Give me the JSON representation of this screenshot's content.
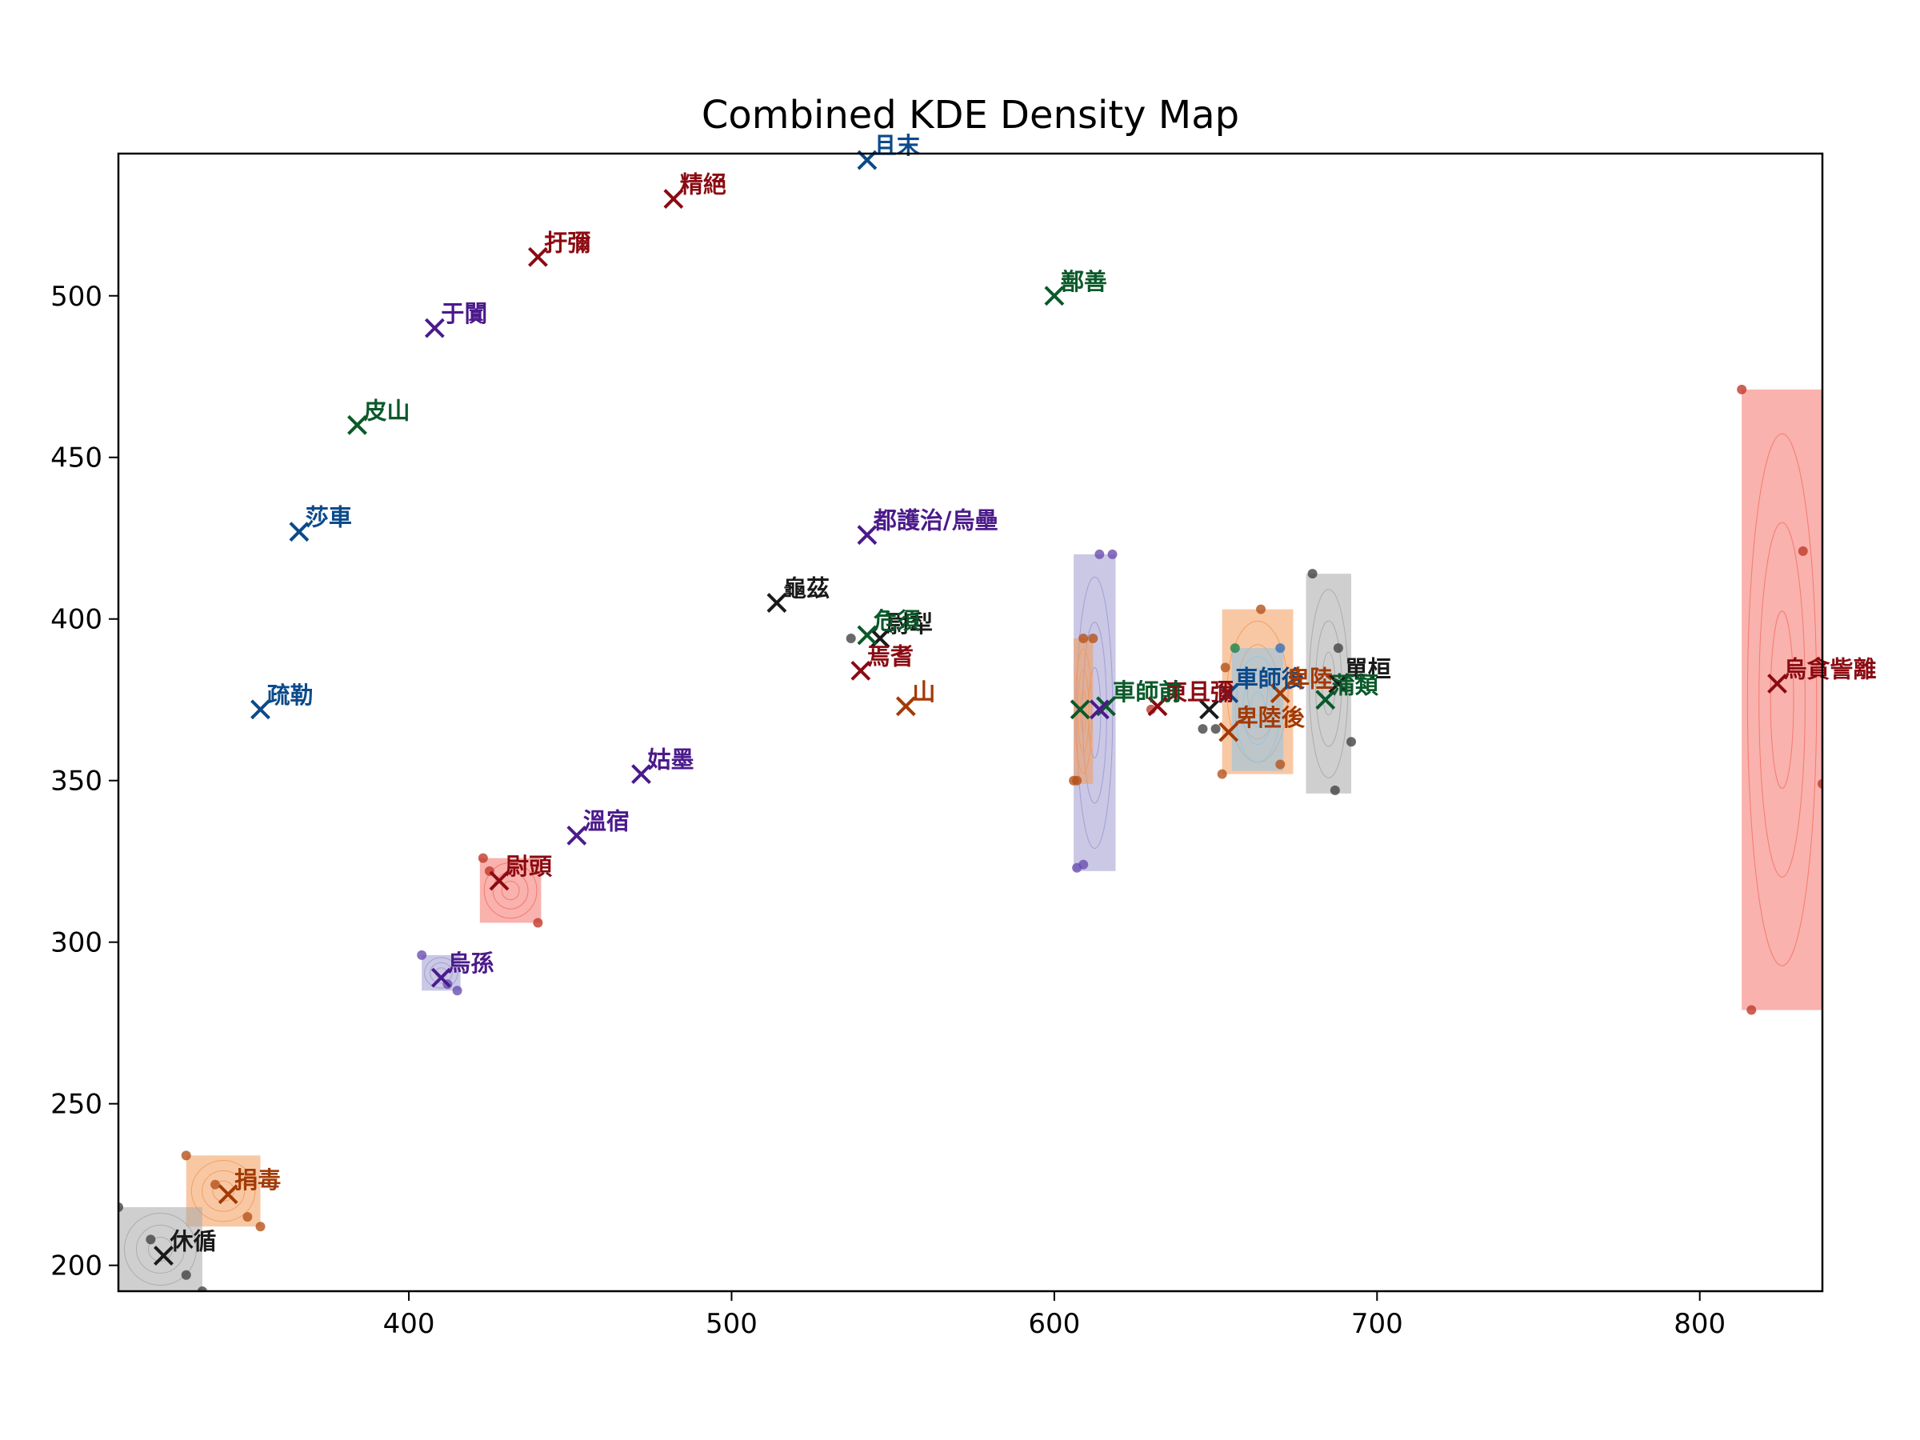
{
  "chart_data": {
    "type": "scatter",
    "title": "Combined KDE Density Map",
    "xlabel": "",
    "ylabel": "",
    "xlim": [
      310,
      838
    ],
    "ylim": [
      192,
      544
    ],
    "x_ticks": [
      400,
      500,
      600,
      700,
      800
    ],
    "y_ticks": [
      200,
      250,
      300,
      350,
      400,
      450,
      500
    ],
    "grid": false,
    "colors": {
      "red": "#8b0a12",
      "blue": "#0b4a8b",
      "purple": "#4b1a8b",
      "green": "#0a5a2a",
      "orange": "#a33a05",
      "black": "#1a1a1a"
    },
    "density_regions": [
      {
        "x": [
          813,
          838
        ],
        "y": [
          279,
          471
        ],
        "color": "#f4736a"
      },
      {
        "x": [
          606,
          619
        ],
        "y": [
          322,
          420
        ],
        "color": "#9e9ad0"
      },
      {
        "x": [
          606,
          612
        ],
        "y": [
          349,
          394
        ],
        "color": "#f39a5a"
      },
      {
        "x": [
          678,
          692
        ],
        "y": [
          346,
          414
        ],
        "color": "#a8a8a8"
      },
      {
        "x": [
          652,
          674
        ],
        "y": [
          352,
          403
        ],
        "color": "#f39a5a"
      },
      {
        "x": [
          655,
          671
        ],
        "y": [
          353,
          391
        ],
        "color": "#8ec5e8"
      },
      {
        "x": [
          422,
          441
        ],
        "y": [
          306,
          326
        ],
        "color": "#f4736a"
      },
      {
        "x": [
          404,
          416
        ],
        "y": [
          285,
          296
        ],
        "color": "#9e9ad0"
      },
      {
        "x": [
          331,
          354
        ],
        "y": [
          212,
          234
        ],
        "color": "#f39a5a"
      },
      {
        "x": [
          310,
          336
        ],
        "y": [
          192,
          218
        ],
        "color": "#a8a8a8"
      }
    ],
    "points": [
      {
        "label": "且末",
        "x": 542,
        "y": 542,
        "color": "blue"
      },
      {
        "label": "精絕",
        "x": 482,
        "y": 530,
        "color": "red"
      },
      {
        "label": "扜彌",
        "x": 440,
        "y": 512,
        "color": "red"
      },
      {
        "label": "鄯善",
        "x": 600,
        "y": 500,
        "color": "green"
      },
      {
        "label": "于闐",
        "x": 408,
        "y": 490,
        "color": "purple"
      },
      {
        "label": "皮山",
        "x": 384,
        "y": 460,
        "color": "green"
      },
      {
        "label": "莎車",
        "x": 366,
        "y": 427,
        "color": "blue"
      },
      {
        "label": "都護治/烏壘",
        "x": 542,
        "y": 426,
        "color": "purple"
      },
      {
        "label": "龜茲",
        "x": 514,
        "y": 405,
        "color": "black"
      },
      {
        "label": "尉犁",
        "x": 546,
        "y": 394,
        "color": "black"
      },
      {
        "label": "危須",
        "x": 542,
        "y": 395,
        "color": "green"
      },
      {
        "label": "焉耆",
        "x": 540,
        "y": 384,
        "color": "red"
      },
      {
        "label": "山",
        "x": 554,
        "y": 373,
        "color": "orange"
      },
      {
        "label": "疏勒",
        "x": 354,
        "y": 372,
        "color": "blue"
      },
      {
        "label": "姑墨",
        "x": 472,
        "y": 352,
        "color": "purple"
      },
      {
        "label": "溫宿",
        "x": 452,
        "y": 333,
        "color": "purple"
      },
      {
        "label": "尉頭",
        "x": 428,
        "y": 319,
        "color": "red"
      },
      {
        "label": "烏孫",
        "x": 410,
        "y": 289,
        "color": "purple"
      },
      {
        "label": "捐毒",
        "x": 344,
        "y": 222,
        "color": "orange"
      },
      {
        "label": "休循",
        "x": 324,
        "y": 203,
        "color": "black"
      },
      {
        "label": "烏貪訾離",
        "x": 824,
        "y": 380,
        "color": "red"
      },
      {
        "label": "單桓",
        "x": 688,
        "y": 380,
        "color": "black"
      },
      {
        "label": "蒲類",
        "x": 684,
        "y": 375,
        "color": "green"
      },
      {
        "label": "車師後",
        "x": 654,
        "y": 377,
        "color": "blue"
      },
      {
        "label": "卑陸",
        "x": 670,
        "y": 377,
        "color": "orange"
      },
      {
        "label": "東且彌",
        "x": 632,
        "y": 373,
        "color": "red"
      },
      {
        "label": "車師前",
        "x": 616,
        "y": 373,
        "color": "green"
      },
      {
        "label": "卑陸後",
        "x": 654,
        "y": 365,
        "color": "orange"
      },
      {
        "label": "",
        "x": 648,
        "y": 372,
        "color": "black"
      },
      {
        "label": "",
        "x": 608,
        "y": 372,
        "color": "green"
      },
      {
        "label": "",
        "x": 614,
        "y": 372,
        "color": "purple"
      }
    ],
    "samples": [
      {
        "x": 813,
        "y": 471,
        "color": "#c0392b"
      },
      {
        "x": 832,
        "y": 421,
        "color": "#c0392b"
      },
      {
        "x": 838,
        "y": 349,
        "color": "#c0392b"
      },
      {
        "x": 816,
        "y": 279,
        "color": "#c0392b"
      },
      {
        "x": 614,
        "y": 420,
        "color": "#6a4fb0"
      },
      {
        "x": 618,
        "y": 420,
        "color": "#6a4fb0"
      },
      {
        "x": 607,
        "y": 323,
        "color": "#6a4fb0"
      },
      {
        "x": 609,
        "y": 324,
        "color": "#6a4fb0"
      },
      {
        "x": 609,
        "y": 394,
        "color": "#b5541c"
      },
      {
        "x": 612,
        "y": 394,
        "color": "#b5541c"
      },
      {
        "x": 606,
        "y": 350,
        "color": "#b5541c"
      },
      {
        "x": 607,
        "y": 350,
        "color": "#b5541c"
      },
      {
        "x": 680,
        "y": 414,
        "color": "#444"
      },
      {
        "x": 688,
        "y": 391,
        "color": "#444"
      },
      {
        "x": 692,
        "y": 362,
        "color": "#444"
      },
      {
        "x": 687,
        "y": 347,
        "color": "#444"
      },
      {
        "x": 664,
        "y": 403,
        "color": "#b5541c"
      },
      {
        "x": 670,
        "y": 355,
        "color": "#b5541c"
      },
      {
        "x": 652,
        "y": 352,
        "color": "#b5541c"
      },
      {
        "x": 653,
        "y": 385,
        "color": "#b5541c"
      },
      {
        "x": 656,
        "y": 391,
        "color": "#1e8449"
      },
      {
        "x": 670,
        "y": 391,
        "color": "#3b6fb5"
      },
      {
        "x": 650,
        "y": 366,
        "color": "#444"
      },
      {
        "x": 646,
        "y": 366,
        "color": "#444"
      },
      {
        "x": 537,
        "y": 394,
        "color": "#444"
      },
      {
        "x": 630,
        "y": 372,
        "color": "#c0392b"
      },
      {
        "x": 423,
        "y": 326,
        "color": "#c0392b"
      },
      {
        "x": 425,
        "y": 322,
        "color": "#c0392b"
      },
      {
        "x": 440,
        "y": 306,
        "color": "#c0392b"
      },
      {
        "x": 404,
        "y": 296,
        "color": "#6a4fb0"
      },
      {
        "x": 412,
        "y": 287,
        "color": "#6a4fb0"
      },
      {
        "x": 415,
        "y": 285,
        "color": "#6a4fb0"
      },
      {
        "x": 331,
        "y": 234,
        "color": "#b5541c"
      },
      {
        "x": 340,
        "y": 225,
        "color": "#b5541c"
      },
      {
        "x": 350,
        "y": 215,
        "color": "#b5541c"
      },
      {
        "x": 354,
        "y": 212,
        "color": "#b5541c"
      },
      {
        "x": 310,
        "y": 218,
        "color": "#444"
      },
      {
        "x": 320,
        "y": 208,
        "color": "#444"
      },
      {
        "x": 331,
        "y": 197,
        "color": "#444"
      },
      {
        "x": 336,
        "y": 192,
        "color": "#444"
      }
    ]
  }
}
